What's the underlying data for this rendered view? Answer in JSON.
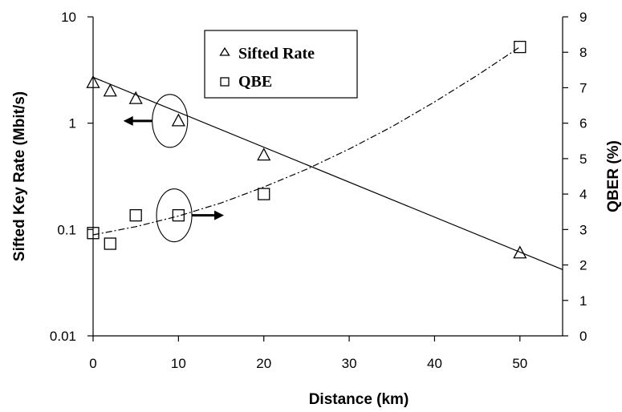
{
  "chart_data": {
    "type": "scatter",
    "xlabel": "Distance (km)",
    "ylabel_left": "Sifted Key Rate (Mbit/s)",
    "ylabel_right": "QBER (%)",
    "xlim": [
      0,
      55
    ],
    "ylim_left": [
      0.01,
      10
    ],
    "ylim_right": [
      0,
      9
    ],
    "left_log_scale": true,
    "x_ticks": [
      "0",
      "10",
      "20",
      "30",
      "40",
      "50"
    ],
    "y_left_ticks": [
      "0.01",
      "0.1",
      "1",
      "10"
    ],
    "y_right_ticks": [
      "0",
      "1",
      "2",
      "3",
      "4",
      "5",
      "6",
      "7",
      "8",
      "9"
    ],
    "grid": false,
    "legend_position": "top-center",
    "series": [
      {
        "name": "Sifted Rate",
        "marker": "triangle",
        "axis": "left",
        "x": [
          0,
          2,
          5,
          10,
          20,
          50
        ],
        "y": [
          2.4,
          2.0,
          1.7,
          1.05,
          0.5,
          0.06
        ],
        "fit": {
          "style": "solid",
          "x": [
            0,
            55
          ],
          "y": [
            2.7,
            0.042
          ]
        }
      },
      {
        "name": "QBE",
        "marker": "square",
        "axis": "right",
        "x": [
          0,
          2,
          5,
          10,
          20,
          50
        ],
        "y": [
          2.9,
          2.6,
          3.4,
          3.4,
          4.0,
          8.15
        ],
        "fit": {
          "style": "dash-dot",
          "x": [
            0,
            5,
            10,
            15,
            20,
            25,
            30,
            35,
            40,
            45,
            50
          ],
          "y": [
            2.85,
            3.08,
            3.38,
            3.75,
            4.2,
            4.7,
            5.27,
            5.9,
            6.6,
            7.35,
            8.15
          ]
        }
      }
    ],
    "annotations": [
      {
        "type": "ellipse-arrow",
        "target_axis": "left",
        "direction": "left"
      },
      {
        "type": "ellipse-arrow",
        "target_axis": "right",
        "direction": "right"
      }
    ]
  }
}
